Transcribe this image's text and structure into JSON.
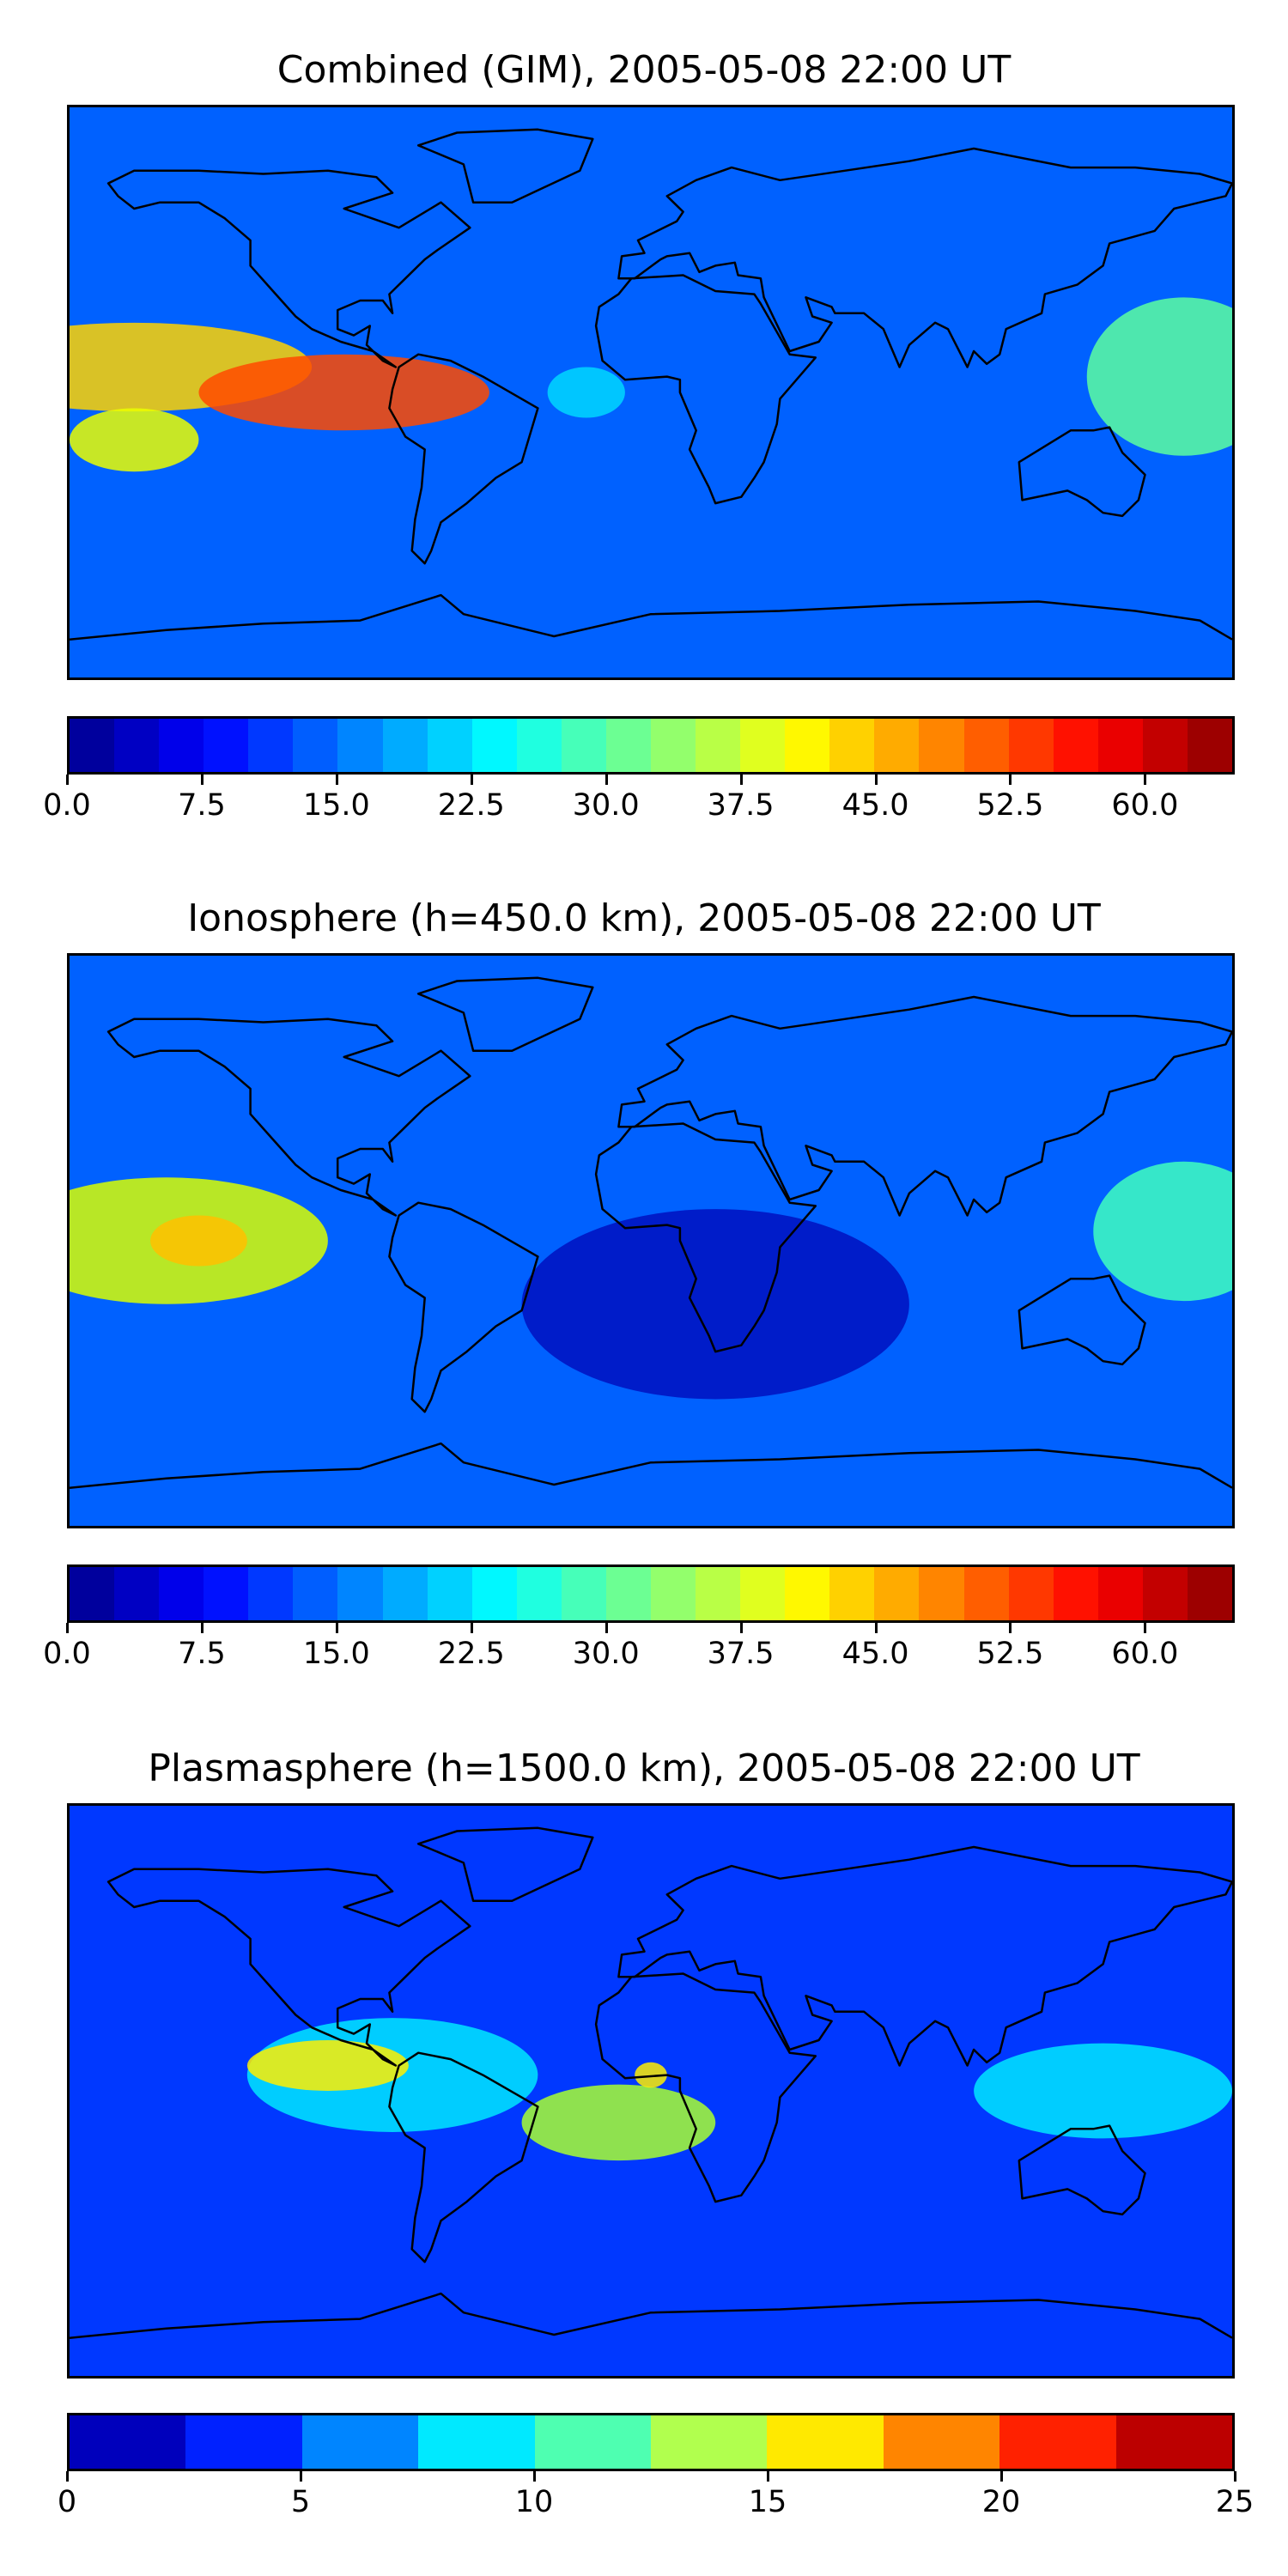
{
  "panels": [
    {
      "title": "Combined (GIM), 2005-05-08 22:00 UT",
      "tick_labels": [
        "0.0",
        "7.5",
        "15.0",
        "22.5",
        "30.0",
        "37.5",
        "45.0",
        "52.5",
        "60.0"
      ],
      "tick_values": [
        0,
        7.5,
        15,
        22.5,
        30,
        37.5,
        45,
        52.5,
        60
      ],
      "scale_min": 0,
      "scale_max": 65,
      "scale_levels": 26,
      "hotspots": [
        {
          "lon": -160,
          "lat": 8,
          "rx": 55,
          "ry": 14,
          "color": "#ffd400"
        },
        {
          "lon": -95,
          "lat": 0,
          "rx": 45,
          "ry": 12,
          "color": "#ff4a00"
        },
        {
          "lon": -160,
          "lat": -15,
          "rx": 20,
          "ry": 10,
          "color": "#eaff00"
        },
        {
          "lon": 165,
          "lat": 5,
          "rx": 30,
          "ry": 25,
          "color": "#5cffa0"
        },
        {
          "lon": -20,
          "lat": 0,
          "rx": 12,
          "ry": 8,
          "color": "#00d8ff"
        }
      ]
    },
    {
      "title": "Ionosphere  (h=450.0 km), 2005-05-08 22:00 UT",
      "tick_labels": [
        "0.0",
        "7.5",
        "15.0",
        "22.5",
        "30.0",
        "37.5",
        "45.0",
        "52.5",
        "60.0"
      ],
      "tick_values": [
        0,
        7.5,
        15,
        22.5,
        30,
        37.5,
        45,
        52.5,
        60
      ],
      "scale_min": 0,
      "scale_max": 65,
      "scale_levels": 26,
      "hotspots": [
        {
          "lon": -150,
          "lat": 0,
          "rx": 50,
          "ry": 20,
          "color": "#d8ff00"
        },
        {
          "lon": -140,
          "lat": 0,
          "rx": 15,
          "ry": 8,
          "color": "#ffc000"
        },
        {
          "lon": 165,
          "lat": 3,
          "rx": 28,
          "ry": 22,
          "color": "#40ffc0"
        },
        {
          "lon": 20,
          "lat": -20,
          "rx": 60,
          "ry": 30,
          "color": "#0010c0"
        }
      ]
    },
    {
      "title": "Plasmasphere (h=1500.0 km), 2005-05-08 22:00 UT",
      "tick_labels": [
        "0",
        "5",
        "10",
        "15",
        "20",
        "25"
      ],
      "tick_values": [
        0,
        5,
        10,
        15,
        20,
        25
      ],
      "scale_min": 0,
      "scale_max": 25,
      "scale_levels": 10,
      "hotspots": [
        {
          "lon": -80,
          "lat": 5,
          "rx": 45,
          "ry": 18,
          "color": "#00e8ff"
        },
        {
          "lon": -100,
          "lat": 8,
          "rx": 25,
          "ry": 8,
          "color": "#ffee00"
        },
        {
          "lon": -10,
          "lat": -10,
          "rx": 30,
          "ry": 12,
          "color": "#a8ff30"
        },
        {
          "lon": 140,
          "lat": 0,
          "rx": 40,
          "ry": 15,
          "color": "#00e8ff"
        },
        {
          "lon": 0,
          "lat": 5,
          "rx": 5,
          "ry": 4,
          "color": "#ffee00"
        }
      ]
    }
  ]
}
